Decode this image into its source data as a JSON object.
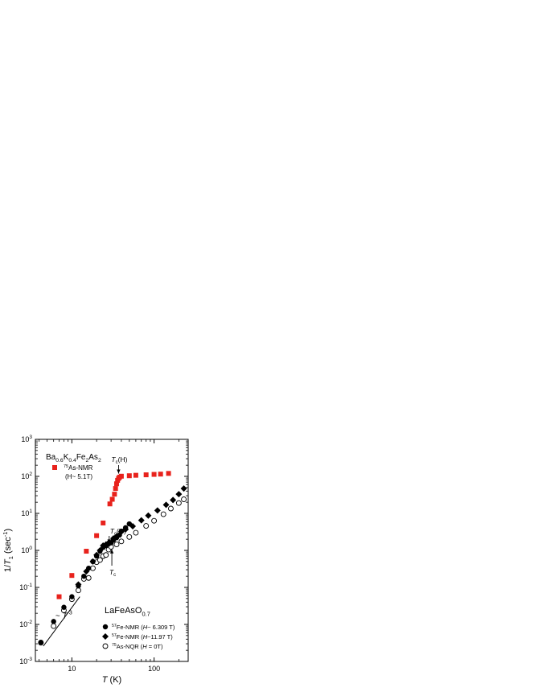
{
  "chart_data": {
    "type": "scatter",
    "xlabel": {
      "italic": "T",
      "rest": " (K)"
    },
    "ylabel": {
      "pre": "1/",
      "italic": "T",
      "sub": "1",
      "post": " (sec",
      "sup": "-1",
      "end": ")"
    },
    "xscale": "log",
    "yscale": "log",
    "xlim": [
      3.6,
      260
    ],
    "ylim": [
      0.001,
      1000
    ],
    "x_ticks": [
      {
        "value": 10,
        "label": "10"
      },
      {
        "value": 100,
        "label": "100"
      }
    ],
    "y_ticks": [
      {
        "value": 0.001,
        "base": "10",
        "exp": "-3"
      },
      {
        "value": 0.01,
        "base": "10",
        "exp": "-2"
      },
      {
        "value": 0.1,
        "base": "10",
        "exp": "-1"
      },
      {
        "value": 1,
        "base": "10",
        "exp": "0"
      },
      {
        "value": 10,
        "base": "10",
        "exp": "1"
      },
      {
        "value": 100,
        "base": "10",
        "exp": "2"
      },
      {
        "value": 1000,
        "base": "10",
        "exp": "3"
      }
    ],
    "grid": false,
    "series": [
      {
        "name": "75As-NMR (H~ 5.1T)",
        "marker": "square",
        "color": "#e8221c",
        "points": [
          [
            7,
            0.056
          ],
          [
            10,
            0.21
          ],
          [
            15,
            0.95
          ],
          [
            20,
            2.5
          ],
          [
            24,
            5.5
          ],
          [
            29,
            18
          ],
          [
            31,
            24
          ],
          [
            33,
            33
          ],
          [
            34,
            47
          ],
          [
            35,
            63
          ],
          [
            36,
            78
          ],
          [
            37,
            88
          ],
          [
            38,
            95
          ],
          [
            40,
            101
          ],
          [
            50,
            104
          ],
          [
            60,
            107
          ],
          [
            80,
            110
          ],
          [
            100,
            113
          ],
          [
            120,
            115
          ],
          [
            150,
            120
          ]
        ]
      },
      {
        "name": "57Fe-NMR (H~ 6.309 T)",
        "marker": "circle-filled",
        "color": "#000000",
        "points": [
          [
            4.2,
            0.0033
          ],
          [
            6,
            0.012
          ],
          [
            8,
            0.029
          ],
          [
            10,
            0.056
          ],
          [
            12,
            0.11
          ],
          [
            14,
            0.2
          ],
          [
            16,
            0.33
          ],
          [
            18,
            0.5
          ],
          [
            20,
            0.7
          ],
          [
            22,
            0.95
          ],
          [
            24,
            1.2
          ],
          [
            26,
            1.35
          ],
          [
            28,
            1.5
          ],
          [
            30,
            1.6
          ],
          [
            32,
            1.9
          ],
          [
            35,
            2.2
          ],
          [
            38,
            2.6
          ],
          [
            40,
            3.3
          ],
          [
            45,
            4.1
          ],
          [
            50,
            5.2
          ]
        ]
      },
      {
        "name": "57Fe-NMR (H~11.97 T)",
        "marker": "diamond",
        "color": "#000000",
        "points": [
          [
            12,
            0.12
          ],
          [
            15,
            0.27
          ],
          [
            18,
            0.5
          ],
          [
            20,
            0.75
          ],
          [
            22,
            1.0
          ],
          [
            24,
            1.35
          ],
          [
            26,
            1.45
          ],
          [
            28,
            1.6
          ],
          [
            32,
            2.1
          ],
          [
            35,
            2.4
          ],
          [
            40,
            3.2
          ],
          [
            45,
            3.7
          ],
          [
            55,
            4.5
          ],
          [
            70,
            6.5
          ],
          [
            85,
            8.7
          ],
          [
            110,
            12
          ],
          [
            140,
            17
          ],
          [
            170,
            23
          ],
          [
            200,
            33
          ],
          [
            230,
            47
          ]
        ]
      },
      {
        "name": "75As-NQR (H = 0T)",
        "marker": "circle-open",
        "color": "#000000",
        "points": [
          [
            4.2,
            0.0032
          ],
          [
            6,
            0.009
          ],
          [
            8,
            0.024
          ],
          [
            10,
            0.048
          ],
          [
            12,
            0.083
          ],
          [
            14,
            0.17
          ],
          [
            16,
            0.18
          ],
          [
            18,
            0.33
          ],
          [
            20,
            0.48
          ],
          [
            22,
            0.55
          ],
          [
            24,
            0.7
          ],
          [
            26,
            0.75
          ],
          [
            28,
            1.05
          ],
          [
            30,
            1.25
          ],
          [
            35,
            1.45
          ],
          [
            40,
            1.75
          ],
          [
            50,
            2.3
          ],
          [
            60,
            3.0
          ],
          [
            80,
            4.6
          ],
          [
            100,
            6.3
          ],
          [
            130,
            9.5
          ],
          [
            160,
            13.5
          ],
          [
            200,
            19
          ],
          [
            230,
            24
          ]
        ]
      }
    ],
    "guide_line": {
      "label_prefix": "~ ",
      "label_base": "T",
      "label_exp": "-3",
      "start": [
        4.5,
        0.0026
      ],
      "end": [
        12.5,
        0.056
      ]
    },
    "annotations": {
      "compound_top": {
        "parts": [
          {
            "t": "Ba",
            "s": ""
          },
          {
            "t": "0.6",
            "s": "sub"
          },
          {
            "t": "K",
            "s": ""
          },
          {
            "t": "0.4",
            "s": "sub"
          },
          {
            "t": "Fe",
            "s": ""
          },
          {
            "t": "2",
            "s": "sub"
          },
          {
            "t": "As",
            "s": ""
          },
          {
            "t": "2",
            "s": "sub"
          }
        ]
      },
      "compound_bottom": {
        "parts": [
          {
            "t": "LaFeAsO",
            "s": ""
          },
          {
            "t": "0.7",
            "s": "sub"
          }
        ]
      },
      "legend_top": {
        "sup": "75",
        "label": "As-NMR",
        "line2": "(H~ 5.1T)"
      },
      "tc_labels": [
        {
          "main": "T",
          "sub": "c",
          "suffix": "(H)",
          "arrow_to": [
            37,
            88
          ]
        },
        {
          "main": "T",
          "sub": "c",
          "suffix": "(H)",
          "arrow_to": [
            26,
            1.2
          ]
        },
        {
          "main": "T",
          "sub": "c",
          "suffix": "",
          "arrow_to": [
            28,
            1.3
          ]
        }
      ],
      "legend_bottom": [
        {
          "sup": "57",
          "label": "Fe-NMR (",
          "h": "H",
          "rest": "~ 6.309 T)"
        },
        {
          "sup": "57",
          "label": "Fe-NMR (",
          "h": "H",
          "rest": "~11.97 T)"
        },
        {
          "sup": "75",
          "label": "As-NQR (",
          "h": "H",
          "rest": " = 0T)"
        }
      ]
    }
  }
}
